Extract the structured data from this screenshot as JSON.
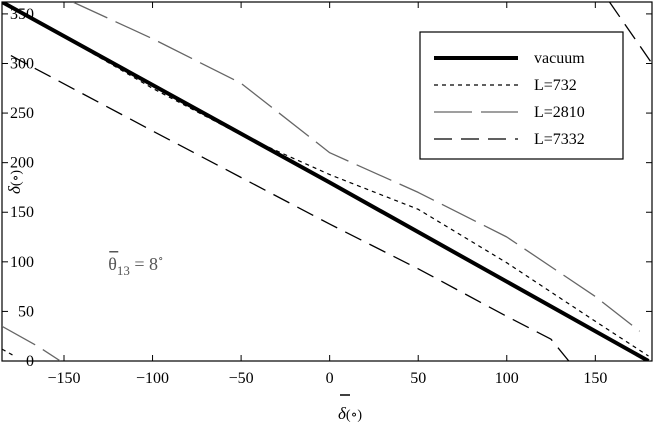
{
  "chart_data": {
    "type": "line",
    "xlabel_symbol": "δ",
    "xlabel_unit": "(∘)",
    "ylabel_symbol": "δ",
    "ylabel_unit": "(∘)",
    "xlim": [
      -185,
      182
    ],
    "ylim": [
      0,
      362
    ],
    "xticks": [
      -150,
      -100,
      -50,
      0,
      50,
      100,
      150
    ],
    "yticks": [
      0,
      50,
      100,
      150,
      200,
      250,
      300,
      350
    ],
    "xticklabels": [
      "−150",
      "−100",
      "−50",
      "0",
      "50",
      "100",
      "150"
    ],
    "yticklabels": [
      "0",
      "50",
      "100",
      "150",
      "200",
      "250",
      "300",
      "350"
    ],
    "annotation": {
      "symbol": "θ",
      "subscript": "13",
      "equals": " = 8",
      "degree": "∘",
      "x": -125,
      "y": 92
    },
    "legend_position": "top-right",
    "series": [
      {
        "name": "vacuum",
        "style": "thick-solid",
        "color": "#000000",
        "segments": [
          [
            [
              -185,
              362
            ],
            [
              0,
              180
            ],
            [
              180,
              0
            ]
          ]
        ]
      },
      {
        "name": "L=732",
        "style": "short-dash",
        "color": "#000000",
        "segments": [
          [
            [
              -185,
              362
            ],
            [
              -150,
              327
            ],
            [
              -100,
              275
            ],
            [
              -50,
              228
            ],
            [
              0,
              188
            ],
            [
              50,
              153
            ],
            [
              100,
              99
            ],
            [
              150,
              40
            ],
            [
              180,
              5
            ]
          ],
          [
            [
              -185,
              12
            ],
            [
              -178,
              5
            ]
          ]
        ]
      },
      {
        "name": "L=2810",
        "style": "gray-long-dash",
        "color": "#666666",
        "segments": [
          [
            [
              -145,
              362
            ],
            [
              -100,
              325
            ],
            [
              -50,
              280
            ],
            [
              0,
              210
            ],
            [
              50,
              170
            ],
            [
              100,
              125
            ],
            [
              150,
              65
            ],
            [
              175,
              30
            ]
          ],
          [
            [
              -185,
              35
            ],
            [
              -165,
              15
            ],
            [
              -152,
              0
            ]
          ]
        ]
      },
      {
        "name": "L=7332",
        "style": "long-dash",
        "color": "#000000",
        "segments": [
          [
            [
              -180,
              308
            ],
            [
              -100,
              232
            ],
            [
              0,
              138
            ],
            [
              50,
              93
            ],
            [
              100,
              45
            ],
            [
              125,
              22
            ],
            [
              135,
              0
            ]
          ],
          [
            [
              158,
              362
            ],
            [
              182,
              300
            ]
          ]
        ]
      }
    ]
  }
}
